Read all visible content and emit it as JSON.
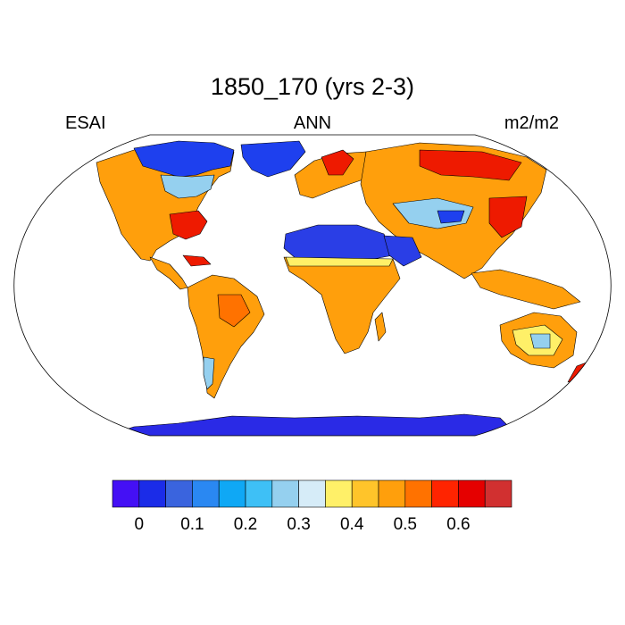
{
  "header": {
    "title": "1850_170 (yrs 2-3)",
    "left_label": "ESAI",
    "center_label": "ANN",
    "right_label": "m2/m2"
  },
  "colorbar": {
    "colors": [
      "#4410f5",
      "#1b2ce8",
      "#3a64de",
      "#2a88f2",
      "#0fa8f5",
      "#3ec0f6",
      "#95d0ef",
      "#d6ecf8",
      "#fff068",
      "#ffc42a",
      "#ff9f0c",
      "#ff7200",
      "#ff2400",
      "#e50000",
      "#d13030"
    ],
    "tick_labels": [
      "0",
      "0.1",
      "0.2",
      "0.3",
      "0.4",
      "0.5",
      "0.6"
    ]
  },
  "map_colors": {
    "antarctica": "#2a2ae6",
    "sahara": "#2a3ee6",
    "arctic": "#1e40ee",
    "cool": "#95d0ef",
    "orange": "#ff9f0c",
    "deep_orange": "#ff7200",
    "red": "#ee1a00",
    "yellow": "#fff068",
    "coast": "#000000"
  }
}
